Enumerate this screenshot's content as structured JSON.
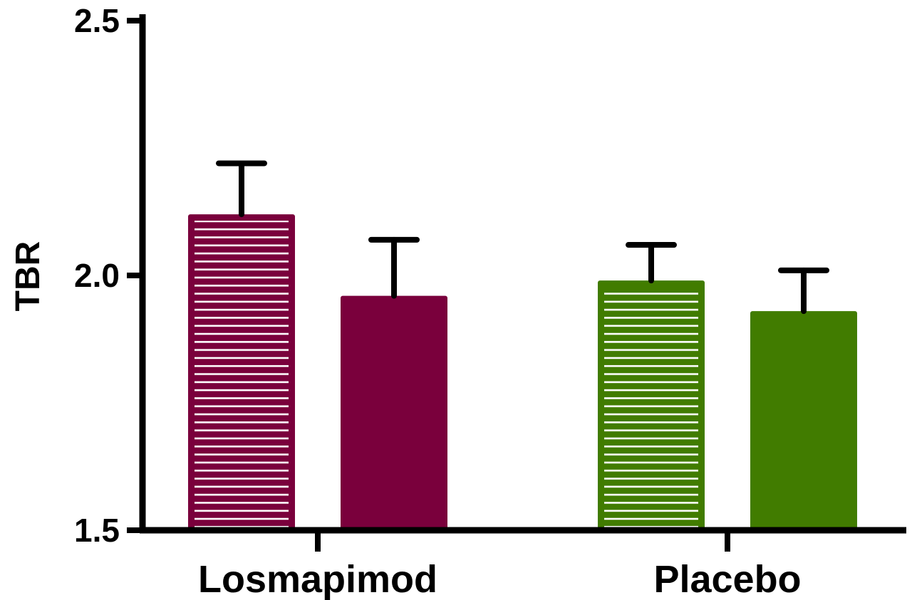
{
  "chart_data": {
    "type": "bar",
    "ylabel": "TBR",
    "xlabel": "",
    "ylim": [
      1.5,
      2.5
    ],
    "yticks": [
      "1.5",
      "2.0",
      "2.5"
    ],
    "grid": false,
    "categories": [
      "Losmapimod",
      "Placebo"
    ],
    "groups": [
      {
        "category": "Losmapimod",
        "bars": [
          {
            "value": 2.12,
            "error": 0.1,
            "color": "#7a003c",
            "pattern": "horizontal-stripes"
          },
          {
            "value": 1.96,
            "error": 0.11,
            "color": "#7a003c",
            "pattern": "solid"
          }
        ]
      },
      {
        "category": "Placebo",
        "bars": [
          {
            "value": 1.99,
            "error": 0.07,
            "color": "#417c00",
            "pattern": "horizontal-stripes"
          },
          {
            "value": 1.93,
            "error": 0.08,
            "color": "#417c00",
            "pattern": "solid"
          }
        ]
      }
    ]
  }
}
